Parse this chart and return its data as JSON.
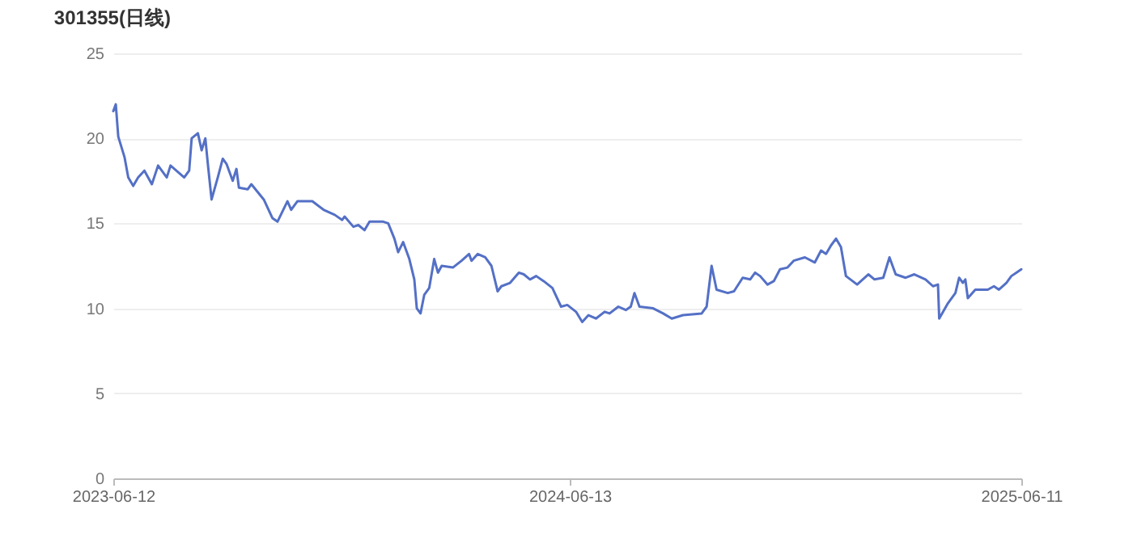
{
  "chart_data": {
    "type": "line",
    "title": "301355(日线)",
    "x": [
      "2023-06-12",
      "2023-06-14",
      "2023-06-16",
      "2023-06-21",
      "2023-06-24",
      "2023-06-28",
      "2023-07-02",
      "2023-07-07",
      "2023-07-13",
      "2023-07-18",
      "2023-07-25",
      "2023-07-28",
      "2023-08-08",
      "2023-08-12",
      "2023-08-14",
      "2023-08-19",
      "2023-08-22",
      "2023-08-25",
      "2023-08-27",
      "2023-08-30",
      "2023-09-04",
      "2023-09-08",
      "2023-09-11",
      "2023-09-16",
      "2023-09-19",
      "2023-09-21",
      "2023-09-28",
      "2023-10-01",
      "2023-10-11",
      "2023-10-18",
      "2023-10-22",
      "2023-10-30",
      "2023-11-02",
      "2023-11-07",
      "2023-11-19",
      "2023-11-28",
      "2023-12-07",
      "2023-12-13",
      "2023-12-15",
      "2023-12-22",
      "2023-12-26",
      "2023-12-31",
      "2024-01-04",
      "2024-01-15",
      "2024-01-19",
      "2024-01-24",
      "2024-01-27",
      "2024-01-31",
      "2024-02-05",
      "2024-02-09",
      "2024-02-11",
      "2024-02-14",
      "2024-02-17",
      "2024-02-21",
      "2024-02-25",
      "2024-02-28",
      "2024-03-02",
      "2024-03-11",
      "2024-03-18",
      "2024-03-24",
      "2024-03-26",
      "2024-03-31",
      "2024-04-06",
      "2024-04-11",
      "2024-04-16",
      "2024-04-19",
      "2024-04-26",
      "2024-05-03",
      "2024-05-07",
      "2024-05-12",
      "2024-05-17",
      "2024-05-23",
      "2024-05-30",
      "2024-06-06",
      "2024-06-11",
      "2024-06-18",
      "2024-06-23",
      "2024-06-28",
      "2024-07-04",
      "2024-07-11",
      "2024-07-15",
      "2024-07-22",
      "2024-07-28",
      "2024-08-01",
      "2024-08-04",
      "2024-08-08",
      "2024-08-19",
      "2024-08-27",
      "2024-09-03",
      "2024-09-12",
      "2024-09-27",
      "2024-10-01",
      "2024-10-05",
      "2024-10-09",
      "2024-10-18",
      "2024-10-23",
      "2024-10-30",
      "2024-11-05",
      "2024-11-09",
      "2024-11-13",
      "2024-11-19",
      "2024-11-24",
      "2024-11-29",
      "2024-12-05",
      "2024-12-10",
      "2024-12-19",
      "2024-12-27",
      "2025-01-01",
      "2025-01-05",
      "2025-01-09",
      "2025-01-13",
      "2025-01-17",
      "2025-01-21",
      "2025-01-30",
      "2025-02-08",
      "2025-02-13",
      "2025-02-20",
      "2025-02-25",
      "2025-03-02",
      "2025-03-10",
      "2025-03-17",
      "2025-03-26",
      "2025-04-01",
      "2025-04-05",
      "2025-04-06",
      "2025-04-13",
      "2025-04-19",
      "2025-04-22",
      "2025-04-25",
      "2025-04-27",
      "2025-04-29",
      "2025-05-05",
      "2025-05-15",
      "2025-05-20",
      "2025-05-24",
      "2025-05-30",
      "2025-06-03",
      "2025-06-07",
      "2025-06-11"
    ],
    "series": [
      {
        "color": "#5470c6",
        "values": [
          21.6,
          22.0,
          20.1,
          18.9,
          17.7,
          17.2,
          17.7,
          18.1,
          17.3,
          18.4,
          17.7,
          18.4,
          17.7,
          18.1,
          20.0,
          20.3,
          19.3,
          20.0,
          18.5,
          16.4,
          17.7,
          18.8,
          18.5,
          17.5,
          18.2,
          17.1,
          17.0,
          17.3,
          16.4,
          15.3,
          15.1,
          16.3,
          15.8,
          16.3,
          16.3,
          15.8,
          15.5,
          15.2,
          15.4,
          14.8,
          14.9,
          14.6,
          15.1,
          15.1,
          15.0,
          14.1,
          13.3,
          13.9,
          12.9,
          11.7,
          10.0,
          9.7,
          10.8,
          11.2,
          12.9,
          12.1,
          12.5,
          12.4,
          12.8,
          13.2,
          12.8,
          13.2,
          13.0,
          12.5,
          11.0,
          11.3,
          11.5,
          12.1,
          12.0,
          11.7,
          11.9,
          11.6,
          11.2,
          10.1,
          10.2,
          9.8,
          9.2,
          9.6,
          9.4,
          9.8,
          9.7,
          10.1,
          9.9,
          10.1,
          10.9,
          10.1,
          10.0,
          9.7,
          9.4,
          9.6,
          9.7,
          10.1,
          12.5,
          11.1,
          10.9,
          11.0,
          11.8,
          11.7,
          12.1,
          11.9,
          11.4,
          11.6,
          12.3,
          12.4,
          12.8,
          13.0,
          12.7,
          13.4,
          13.2,
          13.7,
          14.1,
          13.6,
          11.9,
          11.4,
          12.0,
          11.7,
          11.8,
          13.0,
          12.0,
          11.8,
          12.0,
          11.7,
          11.3,
          11.4,
          9.4,
          10.3,
          10.9,
          11.8,
          11.5,
          11.7,
          10.6,
          11.1,
          11.1,
          11.3,
          11.1,
          11.5,
          11.9,
          12.1,
          12.3
        ]
      }
    ],
    "xlim": [
      "2023-06-12",
      "2025-06-11"
    ],
    "xticks": [
      "2023-06-12",
      "2024-06-13",
      "2025-06-11"
    ],
    "ylim": [
      0,
      25
    ],
    "yticks": [
      0,
      5,
      10,
      15,
      20,
      25
    ],
    "grid": "y",
    "legend": false,
    "marker": "none",
    "line_style": "solid"
  }
}
